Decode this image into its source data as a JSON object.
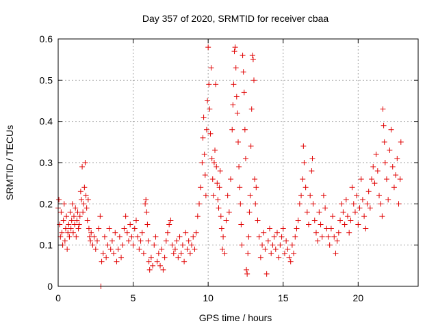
{
  "chart_data": {
    "type": "scatter",
    "title": "Day 357 of 2020, SRMTID for receiver cbaa",
    "xlabel": "GPS time / hours",
    "ylabel": "SRMTID / TECUs",
    "xlim": [
      0,
      24
    ],
    "ylim": [
      0,
      0.6
    ],
    "x_ticks": [
      0,
      5,
      10,
      15,
      20
    ],
    "x_tick_labels": [
      "0",
      "5",
      "10",
      "15",
      "20"
    ],
    "y_ticks": [
      0,
      0.1,
      0.2,
      0.3,
      0.4,
      0.5,
      0.6
    ],
    "y_tick_labels": [
      "0",
      "0.1",
      "0.2",
      "0.3",
      "0.4",
      "0.5",
      "0.6"
    ],
    "grid": true,
    "marker": "+",
    "color": "#e00000",
    "series": [
      {
        "name": "SRMTID",
        "points": [
          [
            0.0,
            0.19
          ],
          [
            0.05,
            0.21
          ],
          [
            0.1,
            0.15
          ],
          [
            0.15,
            0.12
          ],
          [
            0.2,
            0.18
          ],
          [
            0.25,
            0.13
          ],
          [
            0.3,
            0.1
          ],
          [
            0.35,
            0.16
          ],
          [
            0.4,
            0.2
          ],
          [
            0.45,
            0.11
          ],
          [
            0.5,
            0.14
          ],
          [
            0.55,
            0.17
          ],
          [
            0.6,
            0.09
          ],
          [
            0.65,
            0.13
          ],
          [
            0.7,
            0.15
          ],
          [
            0.75,
            0.12
          ],
          [
            0.8,
            0.18
          ],
          [
            0.85,
            0.14
          ],
          [
            0.9,
            0.16
          ],
          [
            0.95,
            0.2
          ],
          [
            1.0,
            0.13
          ],
          [
            1.05,
            0.17
          ],
          [
            1.1,
            0.15
          ],
          [
            1.15,
            0.19
          ],
          [
            1.2,
            0.12
          ],
          [
            1.25,
            0.16
          ],
          [
            1.3,
            0.18
          ],
          [
            1.35,
            0.14
          ],
          [
            1.4,
            0.15
          ],
          [
            1.45,
            0.17
          ],
          [
            1.5,
            0.23
          ],
          [
            1.55,
            0.21
          ],
          [
            1.6,
            0.29
          ],
          [
            1.65,
            0.18
          ],
          [
            1.7,
            0.2
          ],
          [
            1.75,
            0.24
          ],
          [
            1.8,
            0.3
          ],
          [
            1.85,
            0.22
          ],
          [
            1.9,
            0.19
          ],
          [
            1.95,
            0.16
          ],
          [
            2.0,
            0.21
          ],
          [
            2.05,
            0.14
          ],
          [
            2.1,
            0.12
          ],
          [
            2.15,
            0.11
          ],
          [
            2.2,
            0.13
          ],
          [
            2.3,
            0.1
          ],
          [
            2.4,
            0.12
          ],
          [
            2.5,
            0.09
          ],
          [
            2.6,
            0.11
          ],
          [
            2.7,
            0.14
          ],
          [
            2.8,
            0.17
          ],
          [
            2.85,
            0.0
          ],
          [
            2.9,
            0.06
          ],
          [
            3.0,
            0.08
          ],
          [
            3.1,
            0.12
          ],
          [
            3.2,
            0.07
          ],
          [
            3.3,
            0.1
          ],
          [
            3.4,
            0.14
          ],
          [
            3.5,
            0.09
          ],
          [
            3.6,
            0.11
          ],
          [
            3.7,
            0.08
          ],
          [
            3.8,
            0.13
          ],
          [
            3.9,
            0.06
          ],
          [
            4.0,
            0.09
          ],
          [
            4.1,
            0.12
          ],
          [
            4.2,
            0.07
          ],
          [
            4.3,
            0.1
          ],
          [
            4.4,
            0.14
          ],
          [
            4.5,
            0.17
          ],
          [
            4.6,
            0.13
          ],
          [
            4.7,
            0.11
          ],
          [
            4.8,
            0.15
          ],
          [
            4.9,
            0.12
          ],
          [
            5.0,
            0.1
          ],
          [
            5.1,
            0.14
          ],
          [
            5.2,
            0.16
          ],
          [
            5.3,
            0.12
          ],
          [
            5.4,
            0.09
          ],
          [
            5.5,
            0.11
          ],
          [
            5.6,
            0.13
          ],
          [
            5.7,
            0.08
          ],
          [
            5.8,
            0.2
          ],
          [
            5.85,
            0.21
          ],
          [
            5.9,
            0.18
          ],
          [
            5.95,
            0.15
          ],
          [
            6.0,
            0.11
          ],
          [
            6.05,
            0.06
          ],
          [
            6.1,
            0.04
          ],
          [
            6.2,
            0.07
          ],
          [
            6.3,
            0.05
          ],
          [
            6.4,
            0.1
          ],
          [
            6.5,
            0.12
          ],
          [
            6.6,
            0.06
          ],
          [
            6.7,
            0.08
          ],
          [
            6.8,
            0.05
          ],
          [
            6.9,
            0.09
          ],
          [
            7.0,
            0.04
          ],
          [
            7.1,
            0.07
          ],
          [
            7.2,
            0.11
          ],
          [
            7.3,
            0.13
          ],
          [
            7.4,
            0.15
          ],
          [
            7.5,
            0.16
          ],
          [
            7.6,
            0.1
          ],
          [
            7.7,
            0.08
          ],
          [
            7.8,
            0.09
          ],
          [
            7.9,
            0.11
          ],
          [
            8.0,
            0.07
          ],
          [
            8.1,
            0.12
          ],
          [
            8.2,
            0.08
          ],
          [
            8.3,
            0.1
          ],
          [
            8.4,
            0.06
          ],
          [
            8.5,
            0.13
          ],
          [
            8.6,
            0.09
          ],
          [
            8.7,
            0.11
          ],
          [
            8.8,
            0.08
          ],
          [
            8.9,
            0.1
          ],
          [
            9.0,
            0.12
          ],
          [
            9.1,
            0.09
          ],
          [
            9.2,
            0.13
          ],
          [
            9.3,
            0.17
          ],
          [
            9.4,
            0.2
          ],
          [
            9.5,
            0.24
          ],
          [
            9.6,
            0.3
          ],
          [
            9.65,
            0.36
          ],
          [
            9.7,
            0.41
          ],
          [
            9.75,
            0.32
          ],
          [
            9.8,
            0.27
          ],
          [
            9.85,
            0.22
          ],
          [
            9.9,
            0.38
          ],
          [
            9.95,
            0.45
          ],
          [
            10.0,
            0.58
          ],
          [
            10.05,
            0.49
          ],
          [
            10.1,
            0.43
          ],
          [
            10.15,
            0.37
          ],
          [
            10.2,
            0.53
          ],
          [
            10.25,
            0.31
          ],
          [
            10.3,
            0.26
          ],
          [
            10.35,
            0.22
          ],
          [
            10.4,
            0.3
          ],
          [
            10.45,
            0.33
          ],
          [
            10.5,
            0.49
          ],
          [
            10.55,
            0.29
          ],
          [
            10.6,
            0.25
          ],
          [
            10.65,
            0.21
          ],
          [
            10.7,
            0.19
          ],
          [
            10.75,
            0.24
          ],
          [
            10.8,
            0.28
          ],
          [
            10.85,
            0.17
          ],
          [
            10.9,
            0.14
          ],
          [
            10.95,
            0.09
          ],
          [
            11.0,
            0.12
          ],
          [
            11.1,
            0.08
          ],
          [
            11.2,
            0.16
          ],
          [
            11.3,
            0.22
          ],
          [
            11.4,
            0.18
          ],
          [
            11.5,
            0.26
          ],
          [
            11.6,
            0.38
          ],
          [
            11.65,
            0.44
          ],
          [
            11.7,
            0.49
          ],
          [
            11.75,
            0.57
          ],
          [
            11.8,
            0.58
          ],
          [
            11.85,
            0.53
          ],
          [
            11.9,
            0.46
          ],
          [
            11.95,
            0.42
          ],
          [
            12.0,
            0.35
          ],
          [
            12.05,
            0.29
          ],
          [
            12.1,
            0.24
          ],
          [
            12.15,
            0.2
          ],
          [
            12.2,
            0.15
          ],
          [
            12.25,
            0.1
          ],
          [
            12.3,
            0.56
          ],
          [
            12.35,
            0.52
          ],
          [
            12.4,
            0.47
          ],
          [
            12.45,
            0.38
          ],
          [
            12.5,
            0.31
          ],
          [
            12.55,
            0.04
          ],
          [
            12.6,
            0.03
          ],
          [
            12.65,
            0.08
          ],
          [
            12.7,
            0.12
          ],
          [
            12.75,
            0.18
          ],
          [
            12.8,
            0.22
          ],
          [
            12.85,
            0.34
          ],
          [
            12.9,
            0.43
          ],
          [
            12.95,
            0.56
          ],
          [
            13.0,
            0.55
          ],
          [
            13.05,
            0.5
          ],
          [
            13.1,
            0.26
          ],
          [
            13.15,
            0.2
          ],
          [
            13.2,
            0.24
          ],
          [
            13.3,
            0.16
          ],
          [
            13.4,
            0.12
          ],
          [
            13.5,
            0.07
          ],
          [
            13.6,
            0.1
          ],
          [
            13.7,
            0.13
          ],
          [
            13.8,
            0.09
          ],
          [
            13.9,
            0.03
          ],
          [
            14.0,
            0.11
          ],
          [
            14.1,
            0.14
          ],
          [
            14.2,
            0.08
          ],
          [
            14.3,
            0.1
          ],
          [
            14.4,
            0.12
          ],
          [
            14.5,
            0.09
          ],
          [
            14.6,
            0.13
          ],
          [
            14.7,
            0.07
          ],
          [
            14.8,
            0.1
          ],
          [
            14.9,
            0.12
          ],
          [
            15.0,
            0.14
          ],
          [
            15.1,
            0.08
          ],
          [
            15.2,
            0.11
          ],
          [
            15.3,
            0.09
          ],
          [
            15.4,
            0.07
          ],
          [
            15.5,
            0.06
          ],
          [
            15.6,
            0.1
          ],
          [
            15.7,
            0.08
          ],
          [
            15.8,
            0.12
          ],
          [
            15.9,
            0.14
          ],
          [
            16.0,
            0.16
          ],
          [
            16.1,
            0.2
          ],
          [
            16.2,
            0.22
          ],
          [
            16.3,
            0.26
          ],
          [
            16.35,
            0.34
          ],
          [
            16.4,
            0.3
          ],
          [
            16.5,
            0.24
          ],
          [
            16.6,
            0.18
          ],
          [
            16.7,
            0.15
          ],
          [
            16.8,
            0.22
          ],
          [
            16.9,
            0.28
          ],
          [
            16.95,
            0.31
          ],
          [
            17.0,
            0.2
          ],
          [
            17.1,
            0.16
          ],
          [
            17.2,
            0.13
          ],
          [
            17.3,
            0.11
          ],
          [
            17.4,
            0.18
          ],
          [
            17.5,
            0.15
          ],
          [
            17.6,
            0.12
          ],
          [
            17.7,
            0.22
          ],
          [
            17.8,
            0.19
          ],
          [
            17.9,
            0.14
          ],
          [
            18.0,
            0.12
          ],
          [
            18.1,
            0.1
          ],
          [
            18.2,
            0.14
          ],
          [
            18.3,
            0.17
          ],
          [
            18.4,
            0.12
          ],
          [
            18.5,
            0.08
          ],
          [
            18.6,
            0.11
          ],
          [
            18.7,
            0.13
          ],
          [
            18.8,
            0.16
          ],
          [
            18.9,
            0.2
          ],
          [
            19.0,
            0.18
          ],
          [
            19.1,
            0.15
          ],
          [
            19.2,
            0.21
          ],
          [
            19.3,
            0.17
          ],
          [
            19.4,
            0.13
          ],
          [
            19.5,
            0.16
          ],
          [
            19.6,
            0.24
          ],
          [
            19.7,
            0.2
          ],
          [
            19.8,
            0.18
          ],
          [
            19.9,
            0.22
          ],
          [
            20.0,
            0.15
          ],
          [
            20.1,
            0.19
          ],
          [
            20.2,
            0.26
          ],
          [
            20.3,
            0.21
          ],
          [
            20.4,
            0.17
          ],
          [
            20.5,
            0.14
          ],
          [
            20.6,
            0.2
          ],
          [
            20.7,
            0.23
          ],
          [
            20.8,
            0.19
          ],
          [
            20.9,
            0.26
          ],
          [
            21.0,
            0.29
          ],
          [
            21.1,
            0.25
          ],
          [
            21.2,
            0.32
          ],
          [
            21.3,
            0.28
          ],
          [
            21.4,
            0.22
          ],
          [
            21.5,
            0.2
          ],
          [
            21.6,
            0.17
          ],
          [
            21.65,
            0.43
          ],
          [
            21.7,
            0.39
          ],
          [
            21.75,
            0.35
          ],
          [
            21.8,
            0.3
          ],
          [
            21.9,
            0.26
          ],
          [
            22.0,
            0.21
          ],
          [
            22.1,
            0.33
          ],
          [
            22.2,
            0.38
          ],
          [
            22.3,
            0.29
          ],
          [
            22.4,
            0.24
          ],
          [
            22.5,
            0.27
          ],
          [
            22.6,
            0.31
          ],
          [
            22.7,
            0.2
          ],
          [
            22.8,
            0.26
          ],
          [
            22.85,
            0.35
          ]
        ]
      }
    ]
  }
}
